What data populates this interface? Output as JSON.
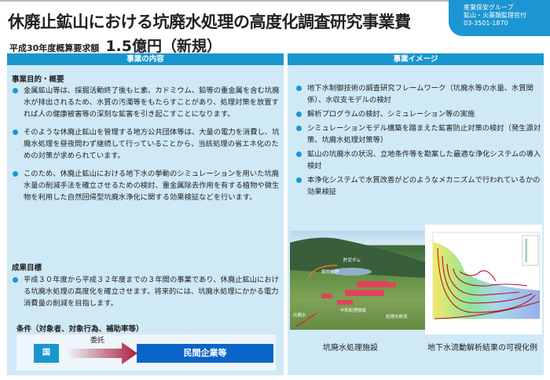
{
  "header": {
    "title": "休廃止鉱山における坑廃水処理の高度化調査研究事業費",
    "budget_label": "平成30年度概算要求額",
    "budget_value": "1.5億円（新規）"
  },
  "contact": {
    "group": "産業保安グループ",
    "office": "鉱山・火薬類監理官付",
    "phone": "03-3501-1870"
  },
  "accent": "#1a96cf",
  "left": {
    "header": "事業の内容",
    "purpose_heading": "事業目的・概要",
    "purpose_items": [
      "金属鉱山等は、採掘活動終了後もヒ素、カドミウム、鉛等の重金属を含む坑廃水が排出されるため、水質の汚濁等をもたらすことがあり、処理対策を放置すれば人の健康被害等の深刻な鉱害を引き起こすことになります。",
      "そのような休廃止鉱山を管理する地方公共団体等は、大量の電力を消費し、坑廃水処理を昼夜問わず継続して行っていることから、当該処理の省エネ化のための対策が求められています。",
      "このため、休廃止鉱山における地下水の挙動のシミュレーションを用いた坑廃水量の削減手法を確立させるための検討、重金属除去作用を有する植物や微生物を利用した自然回帰型坑廃水浄化に関する効果検証などを行います。"
    ],
    "goal_heading": "成果目標",
    "goal_items": [
      "平成３０年度から平成３２年度までの３年間の事業であり、休廃止鉱山における坑廃水処理の高度化を確立させます。将来的には、坑廃水処理にかかる電力消費量の削減を目指します。"
    ],
    "conditions_heading": "条件（対象者、対象行為、補助率等）",
    "flow": {
      "from": "国",
      "arrow_label": "委託",
      "to": "民間企業等"
    }
  },
  "right": {
    "header": "事業イメージ",
    "items": [
      "地下水制御技術の調査研究フレームワーク（坑廃水等の水量、水質関係）、水収支モデルの検討",
      "解析プログラムの検討、シミュレーション等の実施",
      "シミュレーションモデル構築を踏まえた鉱害防止対策の検討（発生源対策、坑廃水処理対策等）",
      "鉱山の坑廃水の状況、立地条件等を勘案した最適な浄化システムの導入検討",
      "本浄化システムで水質改善がどのようなメカニズムで行われているかの効果検証"
    ],
    "photo_caption": "坑廃水処理施設",
    "photo_labels": [
      "貯泥ダム",
      "殿物処理",
      "中和処理施設",
      "坑廃水",
      "処理水放流"
    ],
    "chart_caption": "地下水流動解析結果の可視化例"
  }
}
